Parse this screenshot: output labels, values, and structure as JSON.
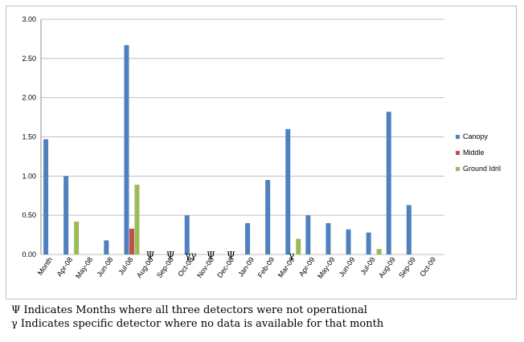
{
  "chart_data": {
    "type": "bar",
    "categories": [
      "Month",
      "Apr-08",
      "May-08",
      "Jun-08",
      "Jul-08",
      "Aug-08",
      "Sep-08",
      "Oct-08",
      "Nov-08",
      "Dec-08",
      "Jan-09",
      "Feb-09",
      "Mar-09",
      "Apr-09",
      "May-09",
      "Jun-09",
      "Jul-09",
      "Aug-09",
      "Sep-09",
      "Oct-09"
    ],
    "series": [
      {
        "name": "Canopy",
        "color": "#4f81bd",
        "values": [
          1.47,
          1.0,
          0,
          0.18,
          2.67,
          0,
          0,
          0.5,
          0,
          0,
          0.4,
          0.95,
          1.6,
          0.5,
          0.4,
          0.32,
          0.28,
          1.82,
          0.63,
          0
        ]
      },
      {
        "name": "Middle",
        "color": "#c0504d",
        "values": [
          0,
          0,
          0,
          0,
          0.33,
          0,
          0,
          0,
          0,
          0,
          0,
          0,
          0,
          0,
          0,
          0,
          0,
          0,
          0,
          0
        ]
      },
      {
        "name": "Ground Idril",
        "color": "#9bbb59",
        "values": [
          0,
          0.42,
          0,
          0,
          0.89,
          0,
          0,
          0,
          0,
          0,
          0,
          0,
          0.2,
          0,
          0,
          0,
          0.07,
          0,
          0,
          0
        ]
      }
    ],
    "ylim": [
      0,
      3.0
    ],
    "yticks": [
      "0.00",
      "0.50",
      "1.00",
      "1.50",
      "2.00",
      "2.50",
      "3.00"
    ],
    "grid": true,
    "legend_position": "right",
    "annotations": [
      {
        "category": "Aug-08",
        "text": "Ψ"
      },
      {
        "category": "Sep-08",
        "text": "Ψ"
      },
      {
        "category": "Oct-08",
        "text": "γγ"
      },
      {
        "category": "Nov-08",
        "text": "Ψ"
      },
      {
        "category": "Dec-08",
        "text": "Ψ"
      },
      {
        "category": "Mar-09",
        "text": "γ"
      }
    ]
  },
  "footnotes": {
    "psi": "Ψ Indicates Months where all three detectors were not operational",
    "gamma": "γ Indicates specific detector where no data is available for that month"
  }
}
